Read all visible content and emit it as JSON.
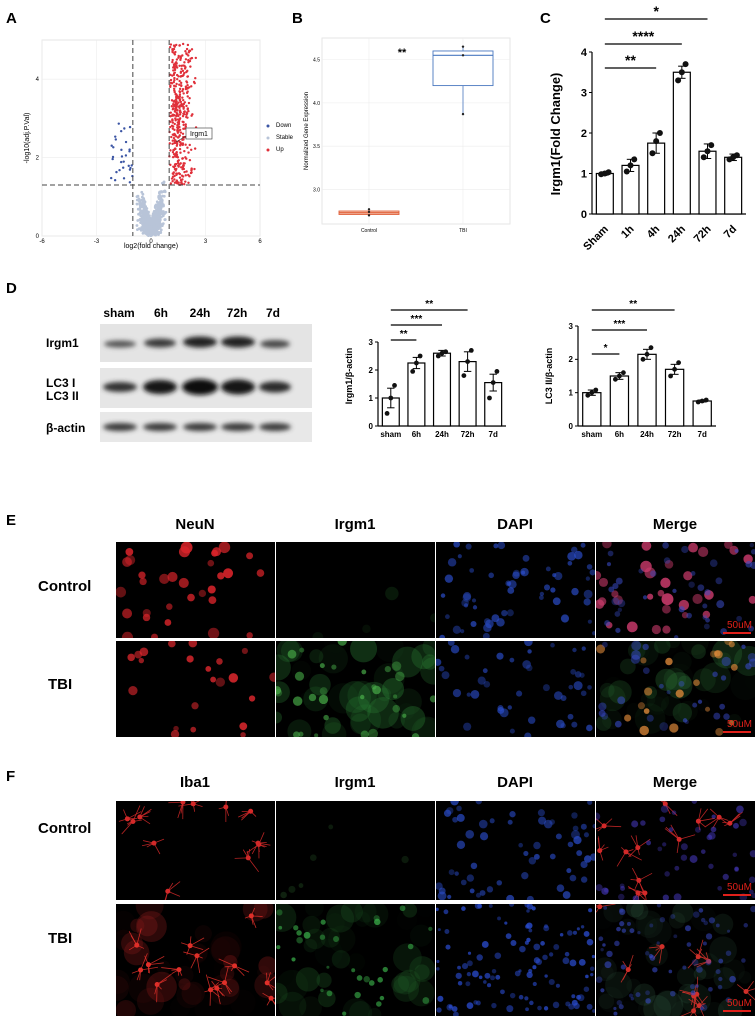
{
  "panels": {
    "A": {
      "letter": "A",
      "xlabel": "log2(fold change)",
      "ylabel": "-log10(adj.P.Val)",
      "gene_label": "Irgm1",
      "x_ticks": [
        "-6",
        "-3",
        "0",
        "3",
        "6"
      ],
      "y_ticks": [
        "0",
        "2",
        "4"
      ],
      "legend": [
        {
          "name": "Down",
          "color": "#3b55a4"
        },
        {
          "name": "Stable",
          "color": "#b8c4d8"
        },
        {
          "name": "Up",
          "color": "#e0303a"
        }
      ]
    },
    "B": {
      "letter": "B",
      "ylabel": "Normalized Gene Expression",
      "significance": "**",
      "categories": [
        "Control",
        "TBI"
      ],
      "y_ticks": [
        "3.0",
        "3.5",
        "4.0",
        "4.5"
      ]
    },
    "C": {
      "letter": "C",
      "ylabel": "Irgm1(Fold Change)",
      "categories": [
        "Sham",
        "1h",
        "4h",
        "24h",
        "72h",
        "7d"
      ],
      "y_ticks": [
        "0",
        "1",
        "2",
        "3",
        "4"
      ],
      "brackets": [
        "*",
        "****",
        "**"
      ]
    },
    "D": {
      "letter": "D",
      "lanes": [
        "sham",
        "6h",
        "24h",
        "72h",
        "7d"
      ],
      "blot_rows": [
        "Irgm1",
        "LC3 I",
        "LC3 II",
        "β-actin"
      ],
      "bar1": {
        "ylabel": "Irgm1/β-actin",
        "categories": [
          "sham",
          "6h",
          "24h",
          "72h",
          "7d"
        ],
        "y_ticks": [
          "0",
          "1",
          "2",
          "3"
        ],
        "brackets": [
          "**",
          "***",
          "**"
        ]
      },
      "bar2": {
        "ylabel": "LC3 II/β-actin",
        "categories": [
          "sham",
          "6h",
          "24h",
          "72h",
          "7d"
        ],
        "y_ticks": [
          "0",
          "1",
          "2",
          "3"
        ],
        "brackets": [
          "**",
          "***",
          "*"
        ]
      }
    },
    "E": {
      "letter": "E",
      "columns": [
        "NeuN",
        "Irgm1",
        "DAPI",
        "Merge"
      ],
      "rows": [
        "Control",
        "TBI"
      ],
      "scale_bar": "50uM"
    },
    "F": {
      "letter": "F",
      "columns": [
        "Iba1",
        "Irgm1",
        "DAPI",
        "Merge"
      ],
      "rows": [
        "Control",
        "TBI"
      ],
      "scale_bar": "50uM"
    }
  },
  "chart_data": [
    {
      "type": "scatter",
      "title": "",
      "xlabel": "log2(fold change)",
      "ylabel": "-log10(adj.P.Val)",
      "xlim": [
        -6,
        6
      ],
      "ylim": [
        0,
        5
      ],
      "thresholds": {
        "x": [
          -1,
          1
        ],
        "y": 1.3
      },
      "series": [
        {
          "name": "Down",
          "color": "#3b55a4"
        },
        {
          "name": "Stable",
          "color": "#b8c4d8"
        },
        {
          "name": "Up",
          "color": "#e0303a"
        }
      ],
      "annotations": [
        {
          "label": "Irgm1",
          "x": 1.1,
          "y": 2.0
        }
      ]
    },
    {
      "type": "box",
      "categories": [
        "Control",
        "TBI"
      ],
      "ylabel": "Normalized Gene Expression",
      "ylim": [
        2.6,
        4.75
      ],
      "boxes": [
        {
          "category": "Control",
          "min": 2.7,
          "q1": 2.71,
          "median": 2.73,
          "q3": 2.75,
          "max": 2.77,
          "points": [
            2.7,
            2.74,
            2.77
          ]
        },
        {
          "category": "TBI",
          "min": 3.87,
          "q1": 4.2,
          "median": 4.55,
          "q3": 4.6,
          "max": 4.65,
          "points": [
            3.87,
            4.55,
            4.65
          ]
        }
      ],
      "significance": "**"
    },
    {
      "type": "bar",
      "categories": [
        "Sham",
        "1h",
        "4h",
        "24h",
        "72h",
        "7d"
      ],
      "values": [
        1.0,
        1.2,
        1.75,
        3.5,
        1.55,
        1.4
      ],
      "errors": [
        0.04,
        0.15,
        0.25,
        0.15,
        0.18,
        0.08
      ],
      "points": [
        [
          0.98,
          1.0,
          1.03
        ],
        [
          1.05,
          1.2,
          1.35
        ],
        [
          1.5,
          1.8,
          2.0
        ],
        [
          3.3,
          3.5,
          3.7
        ],
        [
          1.4,
          1.55,
          1.7
        ],
        [
          1.35,
          1.4,
          1.45
        ]
      ],
      "ylabel": "Irgm1(Fold Change)",
      "ylim": [
        0,
        4
      ]
    },
    {
      "type": "bar",
      "categories": [
        "sham",
        "6h",
        "24h",
        "72h",
        "7d"
      ],
      "values": [
        1.0,
        2.25,
        2.6,
        2.3,
        1.55
      ],
      "errors": [
        0.35,
        0.2,
        0.1,
        0.35,
        0.3
      ],
      "points": [
        [
          0.45,
          1.0,
          1.45
        ],
        [
          1.95,
          2.25,
          2.5
        ],
        [
          2.5,
          2.6,
          2.65
        ],
        [
          1.8,
          2.3,
          2.7
        ],
        [
          1.0,
          1.55,
          1.95
        ]
      ],
      "ylabel": "Irgm1/β-actin",
      "ylim": [
        0,
        3
      ]
    },
    {
      "type": "bar",
      "categories": [
        "sham",
        "6h",
        "24h",
        "72h",
        "7d"
      ],
      "values": [
        1.0,
        1.5,
        2.15,
        1.7,
        0.75
      ],
      "errors": [
        0.08,
        0.1,
        0.15,
        0.15,
        0.03
      ],
      "points": [
        [
          0.92,
          1.0,
          1.08
        ],
        [
          1.4,
          1.5,
          1.6
        ],
        [
          2.0,
          2.15,
          2.35
        ],
        [
          1.5,
          1.7,
          1.9
        ],
        [
          0.72,
          0.75,
          0.78
        ]
      ],
      "ylabel": "LC3 II/β-actin",
      "ylim": [
        0,
        3
      ]
    }
  ]
}
